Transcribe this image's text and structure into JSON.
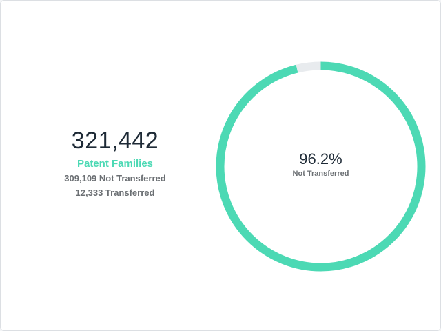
{
  "summary": {
    "total": "321,442",
    "total_label": "Patent Families",
    "not_transferred_line": "309,109 Not Transferred",
    "transferred_line": "12,333 Transferred"
  },
  "donut_center": {
    "percent": "96.2%",
    "label": "Not Transferred"
  },
  "colors": {
    "accent": "#4cd9b4",
    "remainder": "#e8ebee",
    "text_dark": "#1e2a36",
    "text_muted": "#6b6f73"
  },
  "chart_data": {
    "type": "pie",
    "categories": [
      "Not Transferred",
      "Transferred"
    ],
    "values": [
      309109,
      12333
    ],
    "colors": [
      "#4cd9b4",
      "#e8ebee"
    ]
  }
}
